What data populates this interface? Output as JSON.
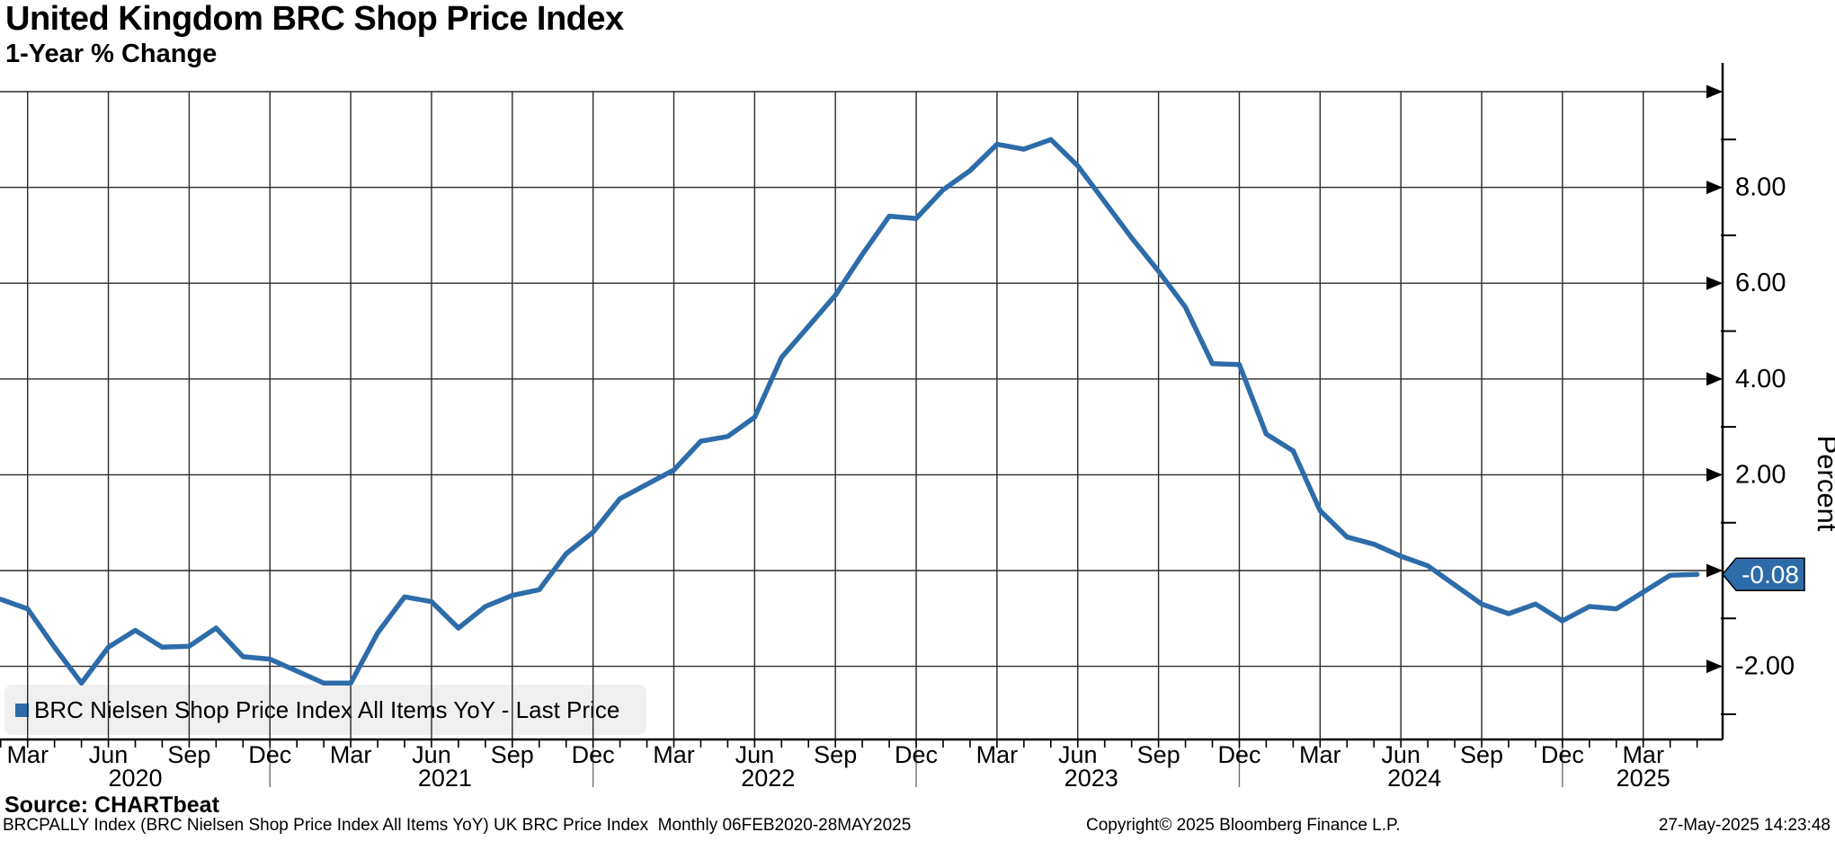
{
  "header": {
    "title": "United Kingdom BRC Shop Price Index",
    "subtitle": "1-Year % Change"
  },
  "legend": {
    "marker_color": "#2d6ca9",
    "label": "BRC Nielsen Shop Price Index All Items YoY - Last Price"
  },
  "chart_data": {
    "type": "line",
    "title": "United Kingdom BRC Shop Price Index",
    "subtitle": "1-Year % Change",
    "ylabel": "Percent",
    "frequency": "monthly",
    "x_start": "Feb 2020",
    "x_end": "May 2025",
    "start_year": 2020,
    "start_month": 2,
    "series": [
      {
        "name": "BRC Nielsen Shop Price Index All Items YoY - Last Price",
        "color": "#2d6ca9",
        "values": [
          -0.6,
          -0.8,
          -1.6,
          -2.35,
          -1.6,
          -1.25,
          -1.6,
          -1.58,
          -1.2,
          -1.8,
          -1.85,
          -2.1,
          -2.35,
          -2.35,
          -1.3,
          -0.55,
          -0.65,
          -1.2,
          -0.75,
          -0.52,
          -0.4,
          0.35,
          0.8,
          1.5,
          1.8,
          2.1,
          2.7,
          2.8,
          3.2,
          4.45,
          5.1,
          5.75,
          6.6,
          7.4,
          7.35,
          7.95,
          8.35,
          8.9,
          8.8,
          9.0,
          8.45,
          7.7,
          6.95,
          6.25,
          5.5,
          4.32,
          4.3,
          2.85,
          2.5,
          1.25,
          0.7,
          0.55,
          0.3,
          0.1,
          -0.3,
          -0.7,
          -0.9,
          -0.7,
          -1.05,
          -0.75,
          -0.8,
          -0.45,
          -0.1,
          -0.08
        ]
      }
    ],
    "last_price": -0.08,
    "last_price_label": "-0.08",
    "y_axis": {
      "label": "Percent",
      "tick_labels": [
        "8.00",
        "6.00",
        "4.00",
        "2.00",
        "-2.00"
      ],
      "tick_values": [
        8,
        6,
        4,
        2,
        -2
      ],
      "gridline_values": [
        10,
        8,
        6,
        4,
        2,
        0,
        -2
      ],
      "minor_tick_values": [
        9,
        7,
        5,
        3,
        1,
        -1,
        -3
      ],
      "range": [
        -3.5,
        10.6
      ],
      "grid": true,
      "side": "right"
    },
    "x_axis": {
      "quarter_labels": [
        "Mar",
        "Jun",
        "Sep",
        "Dec"
      ],
      "year_labels": [
        "2020",
        "2021",
        "2022",
        "2023",
        "2024",
        "2025"
      ],
      "grid": "quarterly"
    },
    "legend_position": "bottom-left"
  },
  "badge": {
    "value": "-0.08",
    "fill": "#2d6ca9",
    "text_color": "#ffffff"
  },
  "footer": {
    "source": "Source: CHARTbeat",
    "description": "BRCPALLY Index (BRC Nielsen Shop Price Index All Items YoY) UK BRC Price Index  Monthly 06FEB2020-28MAY2025",
    "copyright": "Copyright© 2025 Bloomberg Finance L.P.",
    "timestamp": "27-May-2025 14:23:48"
  }
}
